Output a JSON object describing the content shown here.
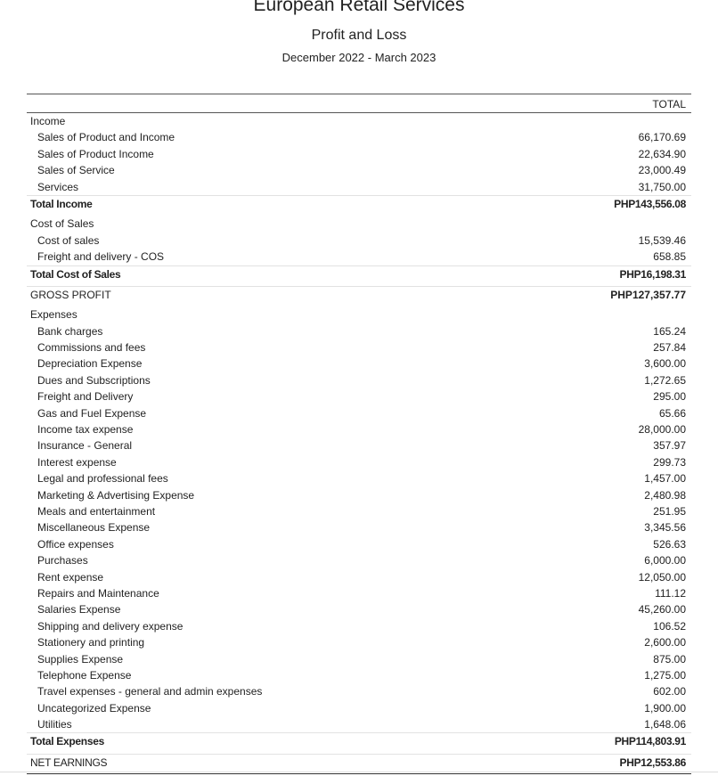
{
  "header": {
    "company": "European Retail Services",
    "report": "Profit and Loss",
    "period": "December 2022 - March 2023"
  },
  "column_header": "TOTAL",
  "rows": [
    {
      "label": "Income",
      "type": "section"
    },
    {
      "label": "Sales of Product and Income",
      "amount": "66,170.69",
      "type": "child"
    },
    {
      "label": "Sales of Product Income",
      "amount": "22,634.90",
      "type": "child"
    },
    {
      "label": "Sales of Service",
      "amount": "23,000.49",
      "type": "child"
    },
    {
      "label": "Services",
      "amount": "31,750.00",
      "type": "child"
    },
    {
      "label": "Total Income",
      "amount": "PHP143,556.08",
      "type": "total"
    },
    {
      "label": "Cost of Sales",
      "type": "section",
      "gap": true
    },
    {
      "label": "Cost of sales",
      "amount": "15,539.46",
      "type": "child"
    },
    {
      "label": "Freight and delivery - COS",
      "amount": "658.85",
      "type": "child"
    },
    {
      "label": "Total Cost of Sales",
      "amount": "PHP16,198.31",
      "type": "total"
    },
    {
      "label": "GROSS PROFIT",
      "amount": "PHP127,357.77",
      "type": "summary",
      "gap": true
    },
    {
      "label": "Expenses",
      "type": "section",
      "gap": true
    },
    {
      "label": "Bank charges",
      "amount": "165.24",
      "type": "child"
    },
    {
      "label": "Commissions and fees",
      "amount": "257.84",
      "type": "child"
    },
    {
      "label": "Depreciation Expense",
      "amount": "3,600.00",
      "type": "child"
    },
    {
      "label": "Dues and Subscriptions",
      "amount": "1,272.65",
      "type": "child"
    },
    {
      "label": "Freight and Delivery",
      "amount": "295.00",
      "type": "child"
    },
    {
      "label": "Gas and Fuel Expense",
      "amount": "65.66",
      "type": "child"
    },
    {
      "label": "Income tax expense",
      "amount": "28,000.00",
      "type": "child"
    },
    {
      "label": "Insurance - General",
      "amount": "357.97",
      "type": "child"
    },
    {
      "label": "Interest expense",
      "amount": "299.73",
      "type": "child"
    },
    {
      "label": "Legal and professional fees",
      "amount": "1,457.00",
      "type": "child"
    },
    {
      "label": "Marketing & Advertising Expense",
      "amount": "2,480.98",
      "type": "child"
    },
    {
      "label": "Meals and entertainment",
      "amount": "251.95",
      "type": "child"
    },
    {
      "label": "Miscellaneous Expense",
      "amount": "3,345.56",
      "type": "child"
    },
    {
      "label": "Office expenses",
      "amount": "526.63",
      "type": "child"
    },
    {
      "label": "Purchases",
      "amount": "6,000.00",
      "type": "child"
    },
    {
      "label": "Rent expense",
      "amount": "12,050.00",
      "type": "child"
    },
    {
      "label": "Repairs and Maintenance",
      "amount": "111.12",
      "type": "child"
    },
    {
      "label": "Salaries Expense",
      "amount": "45,260.00",
      "type": "child"
    },
    {
      "label": "Shipping and delivery expense",
      "amount": "106.52",
      "type": "child"
    },
    {
      "label": "Stationery and printing",
      "amount": "2,600.00",
      "type": "child"
    },
    {
      "label": "Supplies Expense",
      "amount": "875.00",
      "type": "child"
    },
    {
      "label": "Telephone Expense",
      "amount": "1,275.00",
      "type": "child"
    },
    {
      "label": "Travel expenses - general and admin expenses",
      "amount": "602.00",
      "type": "child"
    },
    {
      "label": "Uncategorized Expense",
      "amount": "1,900.00",
      "type": "child"
    },
    {
      "label": "Utilities",
      "amount": "1,648.06",
      "type": "child"
    },
    {
      "label": "Total Expenses",
      "amount": "PHP114,803.91",
      "type": "total"
    },
    {
      "label": "NET EARNINGS",
      "amount": "PHP12,553.86",
      "type": "final",
      "gap": true
    }
  ]
}
